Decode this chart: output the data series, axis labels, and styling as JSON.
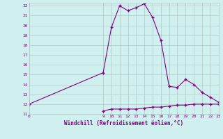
{
  "x_temp": [
    0,
    9,
    10,
    11,
    12,
    13,
    14,
    15,
    16,
    17,
    18,
    19,
    20,
    21,
    22,
    23
  ],
  "y_temp": [
    12,
    15.2,
    19.8,
    22.0,
    21.5,
    21.8,
    22.2,
    20.8,
    18.5,
    13.8,
    13.7,
    14.5,
    14.0,
    13.2,
    12.7,
    12.2
  ],
  "x_wind": [
    9,
    10,
    11,
    12,
    13,
    14,
    15,
    16,
    17,
    18,
    19,
    20,
    21,
    22,
    23
  ],
  "y_wind": [
    11.3,
    11.5,
    11.5,
    11.5,
    11.5,
    11.6,
    11.7,
    11.7,
    11.8,
    11.9,
    11.9,
    12.0,
    12.0,
    12.0,
    12.0
  ],
  "line_color": "#800080",
  "bg_color": "#cff0ee",
  "grid_color": "#b0c8c8",
  "xlabel": "Windchill (Refroidissement éolien,°C)",
  "xticks": [
    0,
    9,
    10,
    11,
    12,
    13,
    14,
    15,
    16,
    17,
    18,
    19,
    20,
    21,
    22,
    23
  ],
  "yticks": [
    11,
    12,
    13,
    14,
    15,
    16,
    17,
    18,
    19,
    20,
    21,
    22
  ],
  "xlim": [
    0,
    23
  ],
  "ylim": [
    11,
    22.3
  ]
}
